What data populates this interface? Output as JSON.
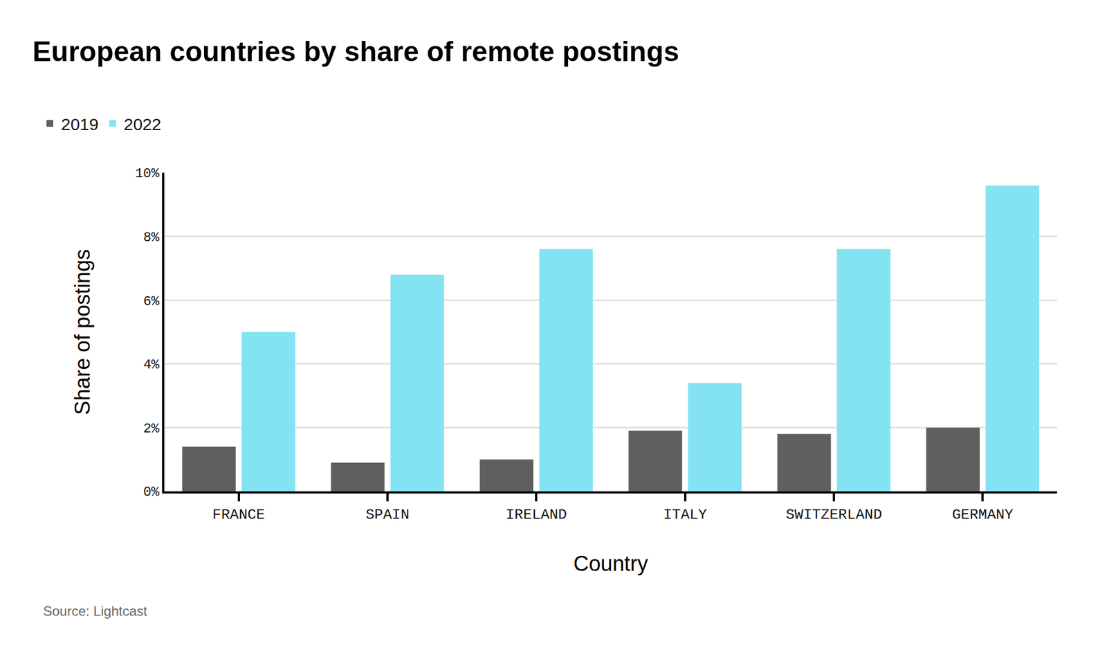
{
  "chart_data": {
    "type": "bar",
    "title": "European countries by share of remote postings",
    "x_label": "Country",
    "y_label": "Share of postings",
    "source": "Source: Lightcast",
    "categories": [
      "FRANCE",
      "SPAIN",
      "IRELAND",
      "ITALY",
      "SWITZERLAND",
      "GERMANY"
    ],
    "series": [
      {
        "name": "2019",
        "color": "#5f5f5f",
        "values": [
          1.4,
          0.9,
          1.0,
          1.9,
          1.8,
          2.0
        ]
      },
      {
        "name": "2022",
        "color": "#84e3f2",
        "values": [
          5.0,
          6.8,
          7.6,
          3.4,
          7.6,
          9.6
        ]
      }
    ],
    "ylim": [
      0,
      10
    ],
    "yticks": [
      {
        "value": 0,
        "label": "0%"
      },
      {
        "value": 2,
        "label": "2%"
      },
      {
        "value": 4,
        "label": "4%"
      },
      {
        "value": 6,
        "label": "6%"
      },
      {
        "value": 8,
        "label": "8%"
      },
      {
        "value": 10,
        "label": "10%"
      }
    ],
    "grid": true,
    "legend": "top-left"
  }
}
